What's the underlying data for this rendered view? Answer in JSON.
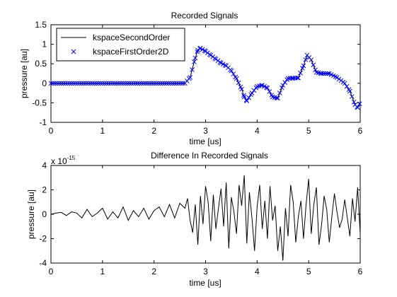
{
  "chart_data": [
    {
      "type": "line",
      "title": "Recorded Signals",
      "xlabel": "time [us]",
      "ylabel": "pressure [au]",
      "xlim": [
        0,
        6
      ],
      "ylim": [
        -1,
        1.5
      ],
      "xticks": [
        0,
        1,
        2,
        3,
        4,
        5,
        6
      ],
      "yticks": [
        -1,
        -0.5,
        0,
        0.5,
        1,
        1.5
      ],
      "grid": false,
      "legend": "top-left",
      "series": [
        {
          "name": "kspaceSecondOrder",
          "style": "line",
          "color": "#000000",
          "x": [
            0,
            2.6,
            2.7,
            2.8,
            2.85,
            2.9,
            3.0,
            3.1,
            3.2,
            3.3,
            3.4,
            3.5,
            3.6,
            3.7,
            3.75,
            3.8,
            3.9,
            4.0,
            4.1,
            4.2,
            4.3,
            4.4,
            4.5,
            4.6,
            4.7,
            4.8,
            4.9,
            4.97,
            5.05,
            5.15,
            5.25,
            5.4,
            5.55,
            5.7,
            5.8,
            5.9,
            5.95,
            6.0
          ],
          "y": [
            0,
            0,
            0.15,
            0.65,
            0.85,
            0.9,
            0.82,
            0.72,
            0.62,
            0.52,
            0.45,
            0.32,
            0.12,
            -0.15,
            -0.35,
            -0.45,
            -0.25,
            -0.08,
            -0.05,
            -0.12,
            -0.35,
            -0.38,
            -0.05,
            0.13,
            0.13,
            0.14,
            0.45,
            0.72,
            0.6,
            0.28,
            0.25,
            0.25,
            0.15,
            0.0,
            -0.2,
            -0.55,
            -0.62,
            -0.5
          ]
        },
        {
          "name": "kspaceFirstOrder2D",
          "style": "marker",
          "marker": "x",
          "color": "#0000ff",
          "x": [
            0,
            2.6,
            2.7,
            2.8,
            2.85,
            2.9,
            3.0,
            3.1,
            3.2,
            3.3,
            3.4,
            3.5,
            3.6,
            3.7,
            3.75,
            3.8,
            3.9,
            4.0,
            4.1,
            4.2,
            4.3,
            4.4,
            4.5,
            4.6,
            4.7,
            4.8,
            4.9,
            4.97,
            5.05,
            5.15,
            5.25,
            5.4,
            5.55,
            5.7,
            5.8,
            5.9,
            5.95,
            6.0
          ],
          "y": [
            0,
            0,
            0.15,
            0.65,
            0.85,
            0.9,
            0.82,
            0.72,
            0.62,
            0.52,
            0.45,
            0.32,
            0.12,
            -0.15,
            -0.35,
            -0.45,
            -0.25,
            -0.08,
            -0.05,
            -0.12,
            -0.35,
            -0.38,
            -0.05,
            0.13,
            0.13,
            0.14,
            0.45,
            0.72,
            0.6,
            0.28,
            0.25,
            0.25,
            0.15,
            0.0,
            -0.2,
            -0.55,
            -0.62,
            -0.5
          ]
        }
      ]
    },
    {
      "type": "line",
      "title": "Difference In Recorded Signals",
      "xlabel": "time [us]",
      "ylabel": "pressure [au]",
      "scale_label": "x 10",
      "scale_exponent": "-15",
      "xlim": [
        0,
        6
      ],
      "ylim": [
        -4,
        4
      ],
      "xticks": [
        0,
        1,
        2,
        3,
        4,
        5,
        6
      ],
      "yticks": [
        -4,
        -2,
        0,
        2,
        4
      ],
      "grid": false,
      "series": [
        {
          "style": "line",
          "color": "#000000",
          "x": [
            0,
            0.1,
            0.2,
            0.3,
            0.4,
            0.5,
            0.6,
            0.7,
            0.8,
            0.9,
            1.0,
            1.1,
            1.2,
            1.3,
            1.4,
            1.5,
            1.6,
            1.7,
            1.8,
            1.9,
            2.0,
            2.1,
            2.2,
            2.3,
            2.4,
            2.5,
            2.6,
            2.65,
            2.7,
            2.75,
            2.8,
            2.85,
            2.9,
            2.95,
            3.0,
            3.05,
            3.1,
            3.15,
            3.2,
            3.25,
            3.3,
            3.35,
            3.4,
            3.45,
            3.5,
            3.55,
            3.6,
            3.65,
            3.7,
            3.75,
            3.8,
            3.85,
            3.9,
            3.95,
            4.0,
            4.05,
            4.1,
            4.15,
            4.2,
            4.25,
            4.3,
            4.35,
            4.4,
            4.45,
            4.5,
            4.55,
            4.6,
            4.65,
            4.7,
            4.75,
            4.8,
            4.85,
            4.9,
            4.95,
            5.0,
            5.05,
            5.1,
            5.15,
            5.2,
            5.25,
            5.3,
            5.35,
            5.4,
            5.45,
            5.5,
            5.55,
            5.6,
            5.65,
            5.7,
            5.75,
            5.8,
            5.85,
            5.9,
            5.95,
            6.0
          ],
          "y": [
            0,
            0.1,
            0.15,
            -0.1,
            0.2,
            0.1,
            -0.3,
            0.4,
            -0.2,
            0.1,
            0.5,
            -0.4,
            0.2,
            -0.3,
            0.6,
            -0.5,
            0.3,
            -0.2,
            0.5,
            -0.4,
            0.3,
            0.6,
            -0.2,
            0.8,
            -0.3,
            0.9,
            0.5,
            1.3,
            -0.5,
            -1.5,
            0.8,
            -2.5,
            1.5,
            -0.8,
            2.3,
            1.0,
            -2.2,
            1.6,
            -1.2,
            0.5,
            2.1,
            -1.0,
            2.6,
            -2.8,
            1.4,
            0.2,
            -1.6,
            2.4,
            0.7,
            3.2,
            -2.4,
            1.8,
            -0.3,
            -3.0,
            0.6,
            2.4,
            -1.2,
            1.1,
            -2.0,
            2.3,
            -0.5,
            0.7,
            -3.0,
            -1.0,
            -3.8,
            0.5,
            -1.8,
            2.4,
            1.0,
            -2.3,
            -0.2,
            1.1,
            -2.0,
            0.8,
            2.9,
            -1.6,
            0.8,
            2.2,
            -2.5,
            -0.9,
            1.5,
            0.4,
            -2.3,
            -0.2,
            1.7,
            0.2,
            -1.1,
            -0.4,
            1.2,
            -0.3,
            -1.8,
            1.3,
            -0.6,
            2.2,
            -1.6
          ]
        }
      ]
    }
  ]
}
